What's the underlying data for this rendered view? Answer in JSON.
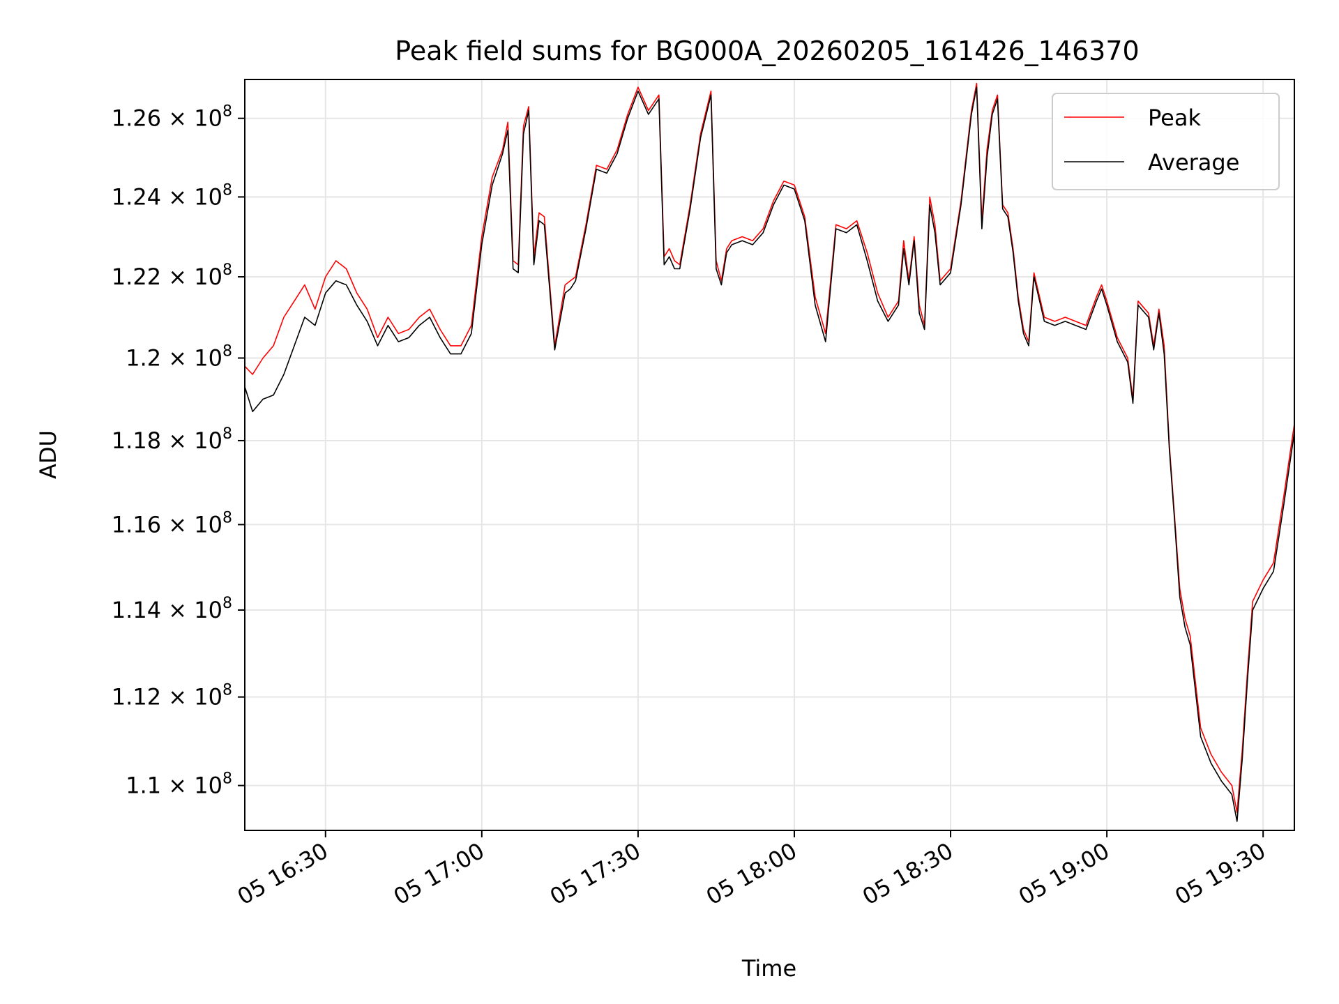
{
  "chart_data": {
    "type": "line",
    "title": "Peak field sums for BG000A_20260205_161426_146370",
    "xlabel": "Time",
    "ylabel": "ADU",
    "x_unit": "2026-02-05 HH:MM",
    "xlim": [
      "16:14:30",
      "19:36:00"
    ],
    "ylim": [
      109000000,
      127000000
    ],
    "y_scale": "log",
    "grid": true,
    "legend_position": "upper right",
    "x_ticks": [
      {
        "value": "16:30",
        "label": "05 16:30"
      },
      {
        "value": "17:00",
        "label": "05 17:00"
      },
      {
        "value": "17:30",
        "label": "05 17:30"
      },
      {
        "value": "18:00",
        "label": "05 18:00"
      },
      {
        "value": "18:30",
        "label": "05 18:30"
      },
      {
        "value": "19:00",
        "label": "05 19:00"
      },
      {
        "value": "19:30",
        "label": "05 19:30"
      }
    ],
    "y_ticks": [
      {
        "value": 110000000,
        "mantissa": "1.1",
        "base": "10",
        "exp": "8"
      },
      {
        "value": 112000000,
        "mantissa": "1.12",
        "base": "10",
        "exp": "8"
      },
      {
        "value": 114000000,
        "mantissa": "1.14",
        "base": "10",
        "exp": "8"
      },
      {
        "value": 116000000,
        "mantissa": "1.16",
        "base": "10",
        "exp": "8"
      },
      {
        "value": 118000000,
        "mantissa": "1.18",
        "base": "10",
        "exp": "8"
      },
      {
        "value": 120000000,
        "mantissa": "1.2",
        "base": "10",
        "exp": "8"
      },
      {
        "value": 122000000,
        "mantissa": "1.22",
        "base": "10",
        "exp": "8"
      },
      {
        "value": 124000000,
        "mantissa": "1.24",
        "base": "10",
        "exp": "8"
      },
      {
        "value": 126000000,
        "mantissa": "1.26",
        "base": "10",
        "exp": "8"
      }
    ],
    "series": [
      {
        "name": "Peak",
        "color": "#ff0000",
        "x": [
          "16:14:30",
          "16:16",
          "16:18",
          "16:20",
          "16:22",
          "16:24",
          "16:26",
          "16:28",
          "16:30",
          "16:32",
          "16:34",
          "16:36",
          "16:38",
          "16:40",
          "16:42",
          "16:44",
          "16:46",
          "16:48",
          "16:50",
          "16:52",
          "16:54",
          "16:56",
          "16:58",
          "17:00",
          "17:02",
          "17:04",
          "17:05",
          "17:06",
          "17:07",
          "17:08",
          "17:09",
          "17:10",
          "17:11",
          "17:12",
          "17:14",
          "17:16",
          "17:17",
          "17:18",
          "17:20",
          "17:22",
          "17:24",
          "17:26",
          "17:28",
          "17:30",
          "17:32",
          "17:33",
          "17:34",
          "17:35",
          "17:36",
          "17:37",
          "17:38",
          "17:40",
          "17:42",
          "17:44",
          "17:45",
          "17:46",
          "17:47",
          "17:48",
          "17:50",
          "17:52",
          "17:54",
          "17:56",
          "17:58",
          "18:00",
          "18:02",
          "18:04",
          "18:06",
          "18:08",
          "18:10",
          "18:12",
          "18:14",
          "18:16",
          "18:18",
          "18:20",
          "18:21",
          "18:22",
          "18:23",
          "18:24",
          "18:25",
          "18:26",
          "18:27",
          "18:28",
          "18:30",
          "18:32",
          "18:34",
          "18:35",
          "18:36",
          "18:37",
          "18:38",
          "18:39",
          "18:40",
          "18:41",
          "18:42",
          "18:43",
          "18:44",
          "18:45",
          "18:46",
          "18:48",
          "18:50",
          "18:52",
          "18:54",
          "18:56",
          "18:58",
          "18:59",
          "19:00",
          "19:02",
          "19:04",
          "19:05",
          "19:06",
          "19:08",
          "19:09",
          "19:10",
          "19:11",
          "19:12",
          "19:13",
          "19:14",
          "19:15",
          "19:16",
          "19:18",
          "19:20",
          "19:22",
          "19:24",
          "19:25",
          "19:26",
          "19:27",
          "19:28",
          "19:30",
          "19:32",
          "19:34",
          "19:36"
        ],
        "values": [
          119800000,
          119600000,
          120000000,
          120300000,
          121000000,
          121400000,
          121800000,
          121200000,
          122000000,
          122400000,
          122200000,
          121600000,
          121200000,
          120500000,
          121000000,
          120600000,
          120700000,
          121000000,
          121200000,
          120700000,
          120300000,
          120300000,
          120800000,
          123000000,
          124500000,
          125200000,
          125900000,
          122400000,
          122300000,
          125800000,
          126300000,
          122500000,
          123600000,
          123500000,
          120300000,
          121800000,
          121900000,
          122000000,
          123300000,
          124800000,
          124700000,
          125200000,
          126100000,
          126800000,
          126200000,
          126400000,
          126600000,
          122500000,
          122700000,
          122400000,
          122300000,
          123800000,
          125600000,
          126700000,
          122400000,
          121900000,
          122700000,
          122900000,
          123000000,
          122900000,
          123200000,
          123900000,
          124400000,
          124300000,
          123500000,
          121500000,
          120600000,
          123300000,
          123200000,
          123400000,
          122600000,
          121600000,
          121000000,
          121400000,
          122900000,
          121900000,
          123000000,
          121300000,
          120800000,
          124000000,
          123300000,
          121900000,
          122200000,
          123900000,
          126200000,
          126900000,
          123400000,
          125200000,
          126200000,
          126600000,
          123800000,
          123600000,
          122700000,
          121500000,
          120700000,
          120400000,
          122100000,
          121000000,
          120900000,
          121000000,
          120900000,
          120800000,
          121500000,
          121800000,
          121400000,
          120500000,
          120000000,
          119000000,
          121400000,
          121100000,
          120300000,
          121200000,
          120300000,
          117900000,
          116200000,
          114500000,
          113800000,
          113400000,
          111300000,
          110700000,
          110300000,
          110000000,
          109400000,
          110800000,
          112600000,
          114200000,
          114700000,
          115100000,
          116700000,
          118400000
        ]
      },
      {
        "name": "Average",
        "color": "#000000",
        "x": [
          "16:14:30",
          "16:16",
          "16:18",
          "16:20",
          "16:22",
          "16:24",
          "16:26",
          "16:28",
          "16:30",
          "16:32",
          "16:34",
          "16:36",
          "16:38",
          "16:40",
          "16:42",
          "16:44",
          "16:46",
          "16:48",
          "16:50",
          "16:52",
          "16:54",
          "16:56",
          "16:58",
          "17:00",
          "17:02",
          "17:04",
          "17:05",
          "17:06",
          "17:07",
          "17:08",
          "17:09",
          "17:10",
          "17:11",
          "17:12",
          "17:14",
          "17:16",
          "17:17",
          "17:18",
          "17:20",
          "17:22",
          "17:24",
          "17:26",
          "17:28",
          "17:30",
          "17:32",
          "17:33",
          "17:34",
          "17:35",
          "17:36",
          "17:37",
          "17:38",
          "17:40",
          "17:42",
          "17:44",
          "17:45",
          "17:46",
          "17:47",
          "17:48",
          "17:50",
          "17:52",
          "17:54",
          "17:56",
          "17:58",
          "18:00",
          "18:02",
          "18:04",
          "18:06",
          "18:08",
          "18:10",
          "18:12",
          "18:14",
          "18:16",
          "18:18",
          "18:20",
          "18:21",
          "18:22",
          "18:23",
          "18:24",
          "18:25",
          "18:26",
          "18:27",
          "18:28",
          "18:30",
          "18:32",
          "18:34",
          "18:35",
          "18:36",
          "18:37",
          "18:38",
          "18:39",
          "18:40",
          "18:41",
          "18:42",
          "18:43",
          "18:44",
          "18:45",
          "18:46",
          "18:48",
          "18:50",
          "18:52",
          "18:54",
          "18:56",
          "18:58",
          "18:59",
          "19:00",
          "19:02",
          "19:04",
          "19:05",
          "19:06",
          "19:08",
          "19:09",
          "19:10",
          "19:11",
          "19:12",
          "19:13",
          "19:14",
          "19:15",
          "19:16",
          "19:18",
          "19:20",
          "19:22",
          "19:24",
          "19:25",
          "19:26",
          "19:27",
          "19:28",
          "19:30",
          "19:32",
          "19:34",
          "19:36"
        ],
        "values": [
          119300000,
          118700000,
          119000000,
          119100000,
          119600000,
          120300000,
          121000000,
          120800000,
          121600000,
          121900000,
          121800000,
          121300000,
          120900000,
          120300000,
          120800000,
          120400000,
          120500000,
          120800000,
          121000000,
          120500000,
          120100000,
          120100000,
          120600000,
          122800000,
          124300000,
          125100000,
          125700000,
          122200000,
          122100000,
          125600000,
          126200000,
          122300000,
          123400000,
          123300000,
          120200000,
          121600000,
          121700000,
          121900000,
          123200000,
          124700000,
          124600000,
          125100000,
          126000000,
          126700000,
          126100000,
          126300000,
          126500000,
          122300000,
          122500000,
          122200000,
          122200000,
          123700000,
          125500000,
          126600000,
          122200000,
          121800000,
          122600000,
          122800000,
          122900000,
          122800000,
          123100000,
          123800000,
          124300000,
          124200000,
          123400000,
          121300000,
          120400000,
          123200000,
          123100000,
          123300000,
          122400000,
          121400000,
          120900000,
          121300000,
          122700000,
          121800000,
          122900000,
          121100000,
          120700000,
          123800000,
          123100000,
          121800000,
          122100000,
          123800000,
          126100000,
          126800000,
          123200000,
          125000000,
          126100000,
          126500000,
          123700000,
          123500000,
          122600000,
          121400000,
          120600000,
          120300000,
          122000000,
          120900000,
          120800000,
          120900000,
          120800000,
          120700000,
          121400000,
          121700000,
          121300000,
          120400000,
          119900000,
          118900000,
          121300000,
          121000000,
          120200000,
          121100000,
          120100000,
          117800000,
          116100000,
          114300000,
          113600000,
          113200000,
          111100000,
          110500000,
          110100000,
          109800000,
          109200000,
          110600000,
          112400000,
          114000000,
          114500000,
          114900000,
          116500000,
          118200000
        ]
      }
    ]
  }
}
